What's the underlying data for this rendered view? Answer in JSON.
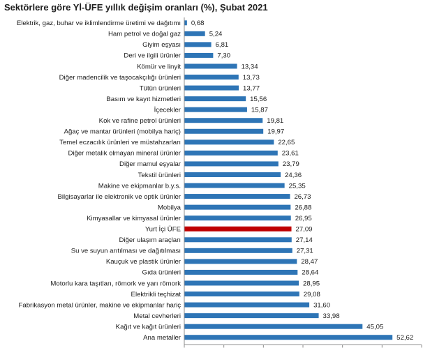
{
  "chart_data": {
    "type": "bar",
    "orientation": "horizontal",
    "title": "Sektörlere göre Yİ-ÜFE yıllık değişim oranları (%), Şubat 2021",
    "xlabel": "",
    "ylabel": "",
    "xlim": [
      0,
      60
    ],
    "xticks": [
      "0",
      "10",
      "20",
      "30",
      "40",
      "50",
      "60"
    ],
    "grid": false,
    "legend": "none",
    "bar_color": "#2e75b6",
    "highlight_color": "#c00000",
    "highlight_category": "Yurt İçi ÜFE",
    "categories": [
      "Elektrik, gaz, buhar ve iklimlendirme üretimi ve dağıtımı",
      "Ham petrol ve doğal gaz",
      "Giyim eşyası",
      "Deri ve ilgili ürünler",
      "Kömür ve linyit",
      "Diğer madencilik ve taşocakçılığı ürünleri",
      "Tütün ürünleri",
      "Basım ve kayıt hizmetleri",
      "İçecekler",
      "Kok ve rafine petrol ürünleri",
      "Ağaç ve mantar ürünleri (mobilya hariç)",
      "Temel eczacılık ürünleri ve müstahzarları",
      "Diğer metalik olmayan mineral ürünler",
      "Diğer mamul eşyalar",
      "Tekstil ürünleri",
      "Makine ve ekipmanlar b.y.s.",
      "Bilgisayarlar ile elektronik ve optik ürünler",
      "Mobilya",
      "Kimyasallar ve kimyasal ürünler",
      "Yurt İçi ÜFE",
      "Diğer ulaşım araçları",
      "Su ve suyun arıtılması ve dağıtılması",
      "Kauçuk ve plastik ürünler",
      "Gıda ürünleri",
      "Motorlu kara taşıtları, römork ve yarı römork",
      "Elektrikli teçhizat",
      "Fabrikasyon metal ürünler, makine ve ekipmanlar hariç",
      "Metal cevherleri",
      "Kağıt ve kağıt ürünleri",
      "Ana metaller"
    ],
    "values": [
      0.68,
      5.24,
      6.81,
      7.3,
      13.34,
      13.73,
      13.77,
      15.56,
      15.87,
      19.81,
      19.97,
      22.65,
      23.61,
      23.79,
      24.36,
      25.35,
      26.73,
      26.88,
      26.95,
      27.09,
      27.14,
      27.31,
      28.47,
      28.64,
      28.95,
      29.08,
      31.6,
      33.98,
      45.05,
      52.62
    ],
    "value_labels": [
      "0,68",
      "5,24",
      "6,81",
      "7,30",
      "13,34",
      "13,73",
      "13,77",
      "15,56",
      "15,87",
      "19,81",
      "19,97",
      "22,65",
      "23,61",
      "23,79",
      "24,36",
      "25,35",
      "26,73",
      "26,88",
      "26,95",
      "27,09",
      "27,14",
      "27,31",
      "28,47",
      "28,64",
      "28,95",
      "29,08",
      "31,60",
      "33,98",
      "45,05",
      "52,62"
    ]
  }
}
